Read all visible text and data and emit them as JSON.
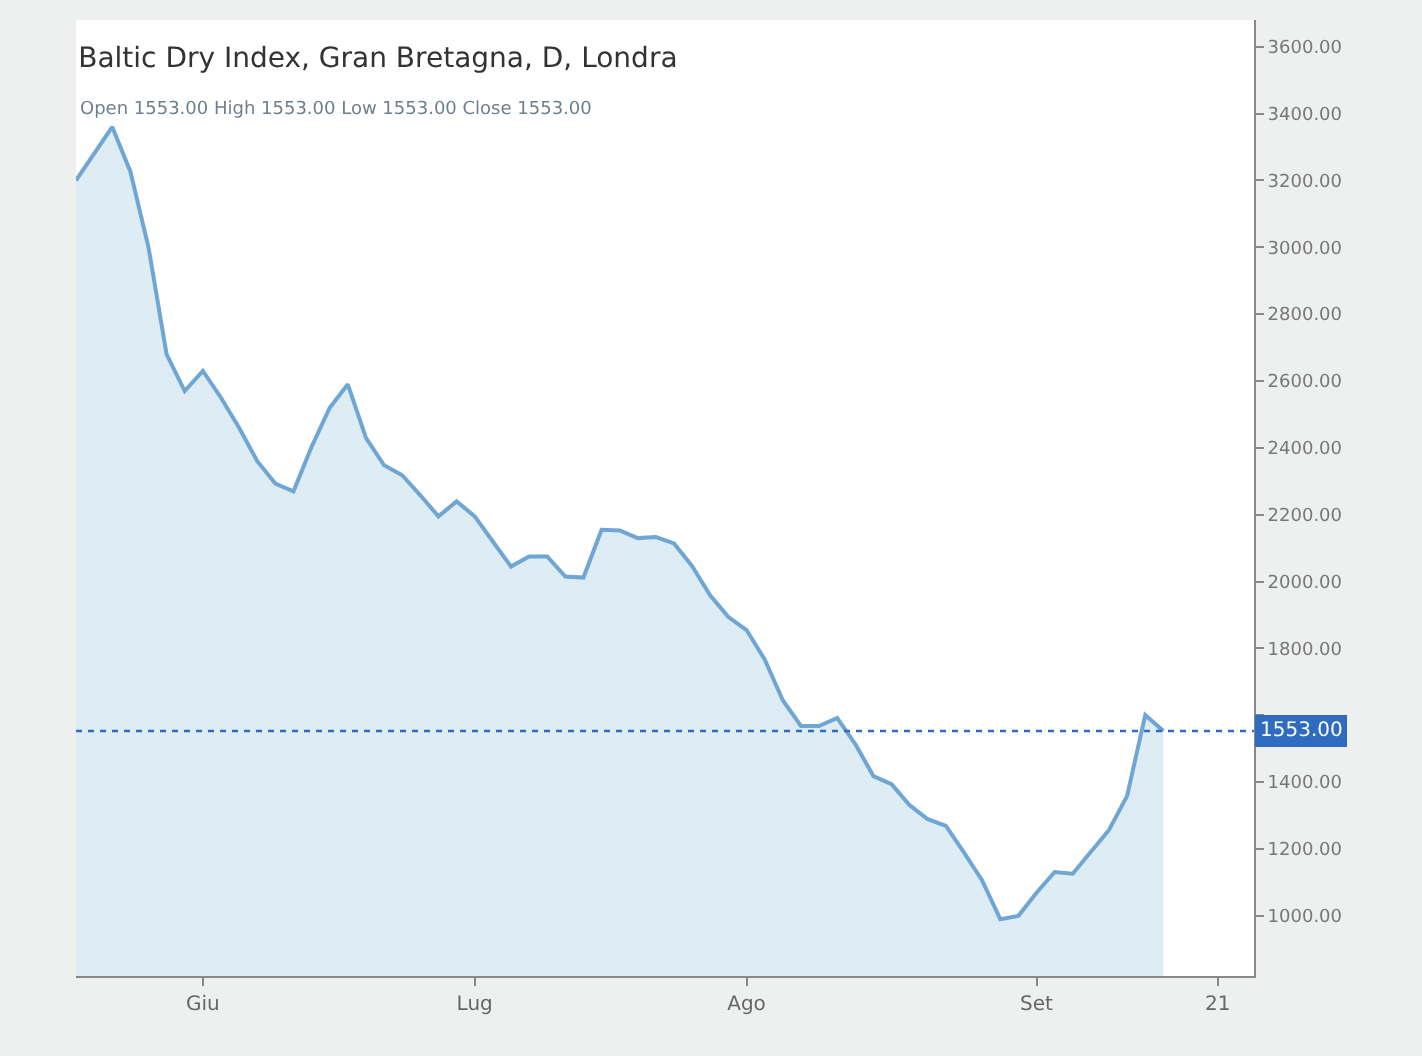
{
  "chart_data": {
    "type": "area",
    "title": "Baltic Dry Index, Gran Bretagna, D, Londra",
    "annotations": [
      "Open 1553.00 High 1553.00 Low 1553.00 Close 1553.00"
    ],
    "categories": [
      null,
      null,
      null,
      null,
      null,
      null,
      null,
      "Giu",
      null,
      null,
      null,
      null,
      null,
      null,
      null,
      null,
      null,
      null,
      null,
      null,
      null,
      null,
      "Lug",
      null,
      null,
      null,
      null,
      null,
      null,
      null,
      null,
      null,
      null,
      null,
      null,
      null,
      null,
      "Ago",
      null,
      null,
      null,
      null,
      null,
      null,
      null,
      null,
      null,
      null,
      null,
      null,
      null,
      null,
      null,
      "Set",
      null,
      null,
      null,
      null,
      null,
      null,
      null,
      null,
      null,
      "21",
      null,
      null
    ],
    "series": [
      {
        "color": "#6fa6d3",
        "values": [
          3200,
          3280,
          3360,
          3227,
          3000,
          2680,
          2570,
          2630,
          2550,
          2460,
          2360,
          2293,
          2270,
          2403,
          2520,
          2590,
          2430,
          2348,
          2318,
          2258,
          2195,
          2240,
          2195,
          2120,
          2045,
          2075,
          2075,
          2015,
          2012,
          2155,
          2153,
          2130,
          2133,
          2114,
          2046,
          1958,
          1894,
          1855,
          1767,
          1645,
          1568,
          1568,
          1592,
          1514,
          1418,
          1394,
          1331,
          1289,
          1269,
          1189,
          1106,
          990,
          1000,
          1069,
          1131,
          1126,
          1192,
          1257,
          1359,
          1601,
          1553,
          null,
          null,
          null,
          null,
          null
        ]
      }
    ],
    "ylim": [
      820,
      3680
    ],
    "yticks": [
      {
        "value": 1000,
        "label": "1000.00"
      },
      {
        "value": 1200,
        "label": "1200.00"
      },
      {
        "value": 1400,
        "label": "1400.00"
      },
      {
        "value": 1600,
        "label": null
      },
      {
        "value": 1800,
        "label": "1800.00"
      },
      {
        "value": 2000,
        "label": "2000.00"
      },
      {
        "value": 2200,
        "label": "2200.00"
      },
      {
        "value": 2400,
        "label": "2400.00"
      },
      {
        "value": 2600,
        "label": "2600.00"
      },
      {
        "value": 2800,
        "label": "2800.00"
      },
      {
        "value": 3000,
        "label": "3000.00"
      },
      {
        "value": 3200,
        "label": "3200.00"
      },
      {
        "value": 3400,
        "label": "3400.00"
      },
      {
        "value": 3600,
        "label": "3600.00"
      }
    ],
    "ref_lines": [
      {
        "axis": "y",
        "value": 1553,
        "label": "1553.00",
        "color": "#2f6cc0",
        "line_style": "dotted"
      }
    ],
    "grid": false,
    "marker": "none"
  }
}
